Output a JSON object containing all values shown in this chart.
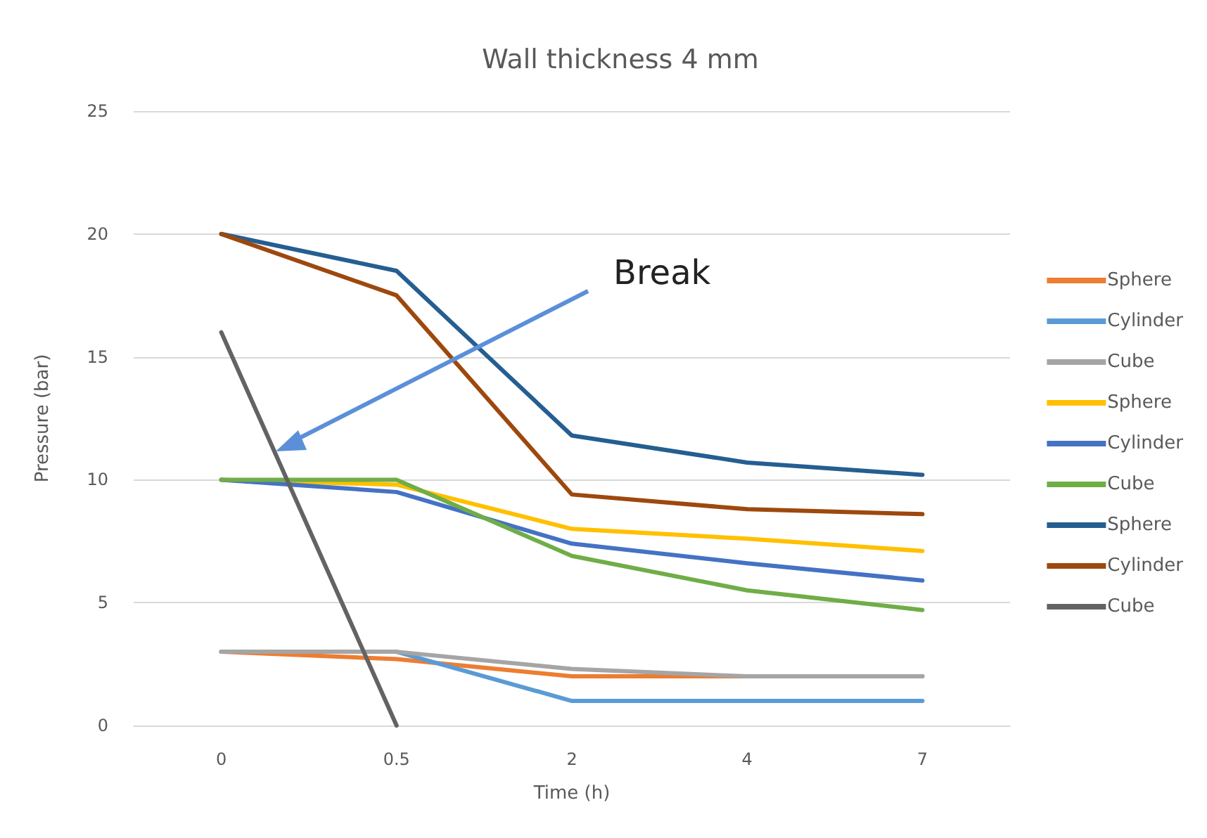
{
  "chart_data": {
    "type": "line",
    "title": "Wall thickness 4 mm",
    "xlabel": "Time (h)",
    "ylabel": "Pressure (bar)",
    "categories": [
      "0",
      "0.5",
      "2",
      "4",
      "7"
    ],
    "series": [
      {
        "name": "Sphere",
        "color": "#ed7d31",
        "values": [
          3,
          2.7,
          2.0,
          2.0,
          2.0
        ]
      },
      {
        "name": "Cylinder",
        "color": "#5b9bd5",
        "values": [
          3,
          3.0,
          1.0,
          1.0,
          1.0
        ]
      },
      {
        "name": "Cube",
        "color": "#a5a5a5",
        "values": [
          3,
          3.0,
          2.3,
          2.0,
          2.0
        ]
      },
      {
        "name": "Sphere",
        "color": "#ffc000",
        "values": [
          10,
          9.8,
          8.0,
          7.6,
          7.1
        ]
      },
      {
        "name": "Cylinder",
        "color": "#4472c4",
        "values": [
          10,
          9.5,
          7.4,
          6.6,
          5.9
        ]
      },
      {
        "name": "Cube",
        "color": "#70ad47",
        "values": [
          10,
          10,
          6.9,
          5.5,
          4.7
        ]
      },
      {
        "name": "Sphere",
        "color": "#255e91",
        "values": [
          20,
          18.5,
          11.8,
          10.7,
          10.2
        ]
      },
      {
        "name": "Cylinder",
        "color": "#9e480e",
        "values": [
          20,
          17.5,
          9.4,
          8.8,
          8.6
        ]
      },
      {
        "name": "Cube",
        "color": "#636363",
        "values": [
          16,
          0,
          null,
          null,
          null
        ]
      }
    ],
    "ylim": [
      0,
      25
    ],
    "yticks": [
      0,
      5,
      10,
      15,
      20,
      25
    ],
    "grid": "y",
    "legend": "right",
    "marker": "none",
    "line_style": "solid",
    "annotations": [
      "Break"
    ]
  }
}
